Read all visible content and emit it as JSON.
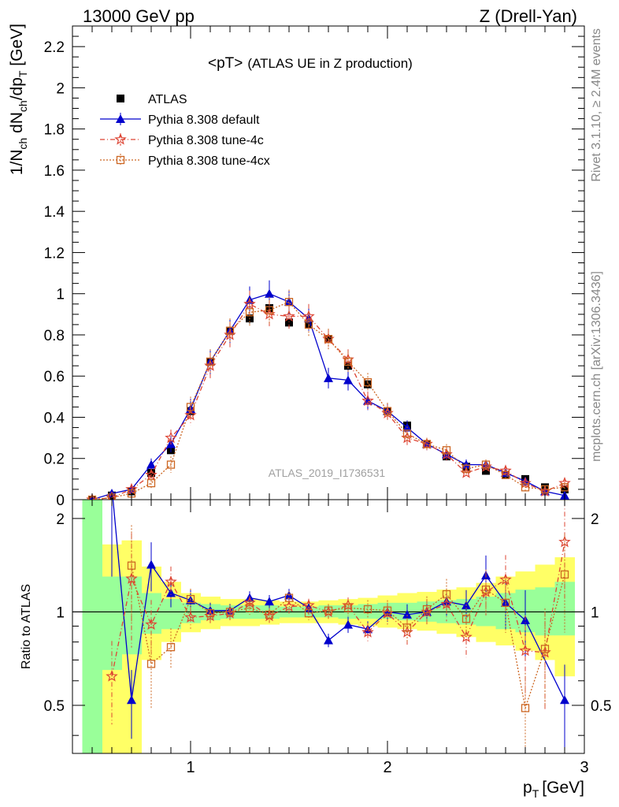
{
  "header": {
    "left": "13000 GeV pp",
    "right": "Z (Drell-Yan)"
  },
  "side": {
    "rivet": "Rivet 3.1.10, ≥ 2.4M events",
    "mcplots": "mcplots.cern.ch [arXiv:1306.3436]"
  },
  "chart_data": {
    "type": "line",
    "title": "<pT>",
    "subtitle": "(ATLAS UE in Z production)",
    "analysis_label": "ATLAS_2019_I1736531",
    "xlabel_main": "p",
    "xlabel_sub": "T",
    "xlabel_unit": "[GeV]",
    "ylabel_main": "1/N",
    "ylabel_sub1": "ch",
    "ylabel_mid1": " dN",
    "ylabel_sub2": "ch",
    "ylabel_mid2": "/dp",
    "ylabel_sub3": "T",
    "ylabel_unit": " [GeV]",
    "ratio_ylabel": "Ratio to ATLAS",
    "xlim": [
      0.4,
      3.0
    ],
    "ylim": [
      0,
      2.3
    ],
    "ratio_ylim": [
      0.35,
      2.3
    ],
    "x_ticks": [
      "1",
      "2",
      "3"
    ],
    "y_ticks": [
      "0",
      "0.2",
      "0.4",
      "0.6",
      "0.8",
      "1",
      "1.2",
      "1.4",
      "1.6",
      "1.8",
      "2",
      "2.2"
    ],
    "ratio_ticks": [
      "0.5",
      "1",
      "2"
    ],
    "legend_position": "top-left",
    "x": [
      0.5,
      0.6,
      0.7,
      0.8,
      0.9,
      1.0,
      1.1,
      1.2,
      1.3,
      1.4,
      1.5,
      1.6,
      1.7,
      1.8,
      1.9,
      2.0,
      2.1,
      2.2,
      2.3,
      2.4,
      2.5,
      2.6,
      2.7,
      2.8,
      2.9
    ],
    "band_edges": [
      0.45,
      0.55,
      0.65,
      0.75,
      0.85,
      0.95,
      1.05,
      1.15,
      1.25,
      1.35,
      1.45,
      1.55,
      1.65,
      1.75,
      1.85,
      1.95,
      2.05,
      2.15,
      2.25,
      2.35,
      2.45,
      2.55,
      2.65,
      2.75,
      2.85,
      2.95
    ],
    "band_green": [
      [
        0.35,
        2.3
      ],
      [
        0.65,
        1.3
      ],
      [
        0.73,
        1.3
      ],
      [
        0.85,
        1.15
      ],
      [
        0.88,
        1.1
      ],
      [
        0.92,
        1.07
      ],
      [
        0.94,
        1.06
      ],
      [
        0.95,
        1.05
      ],
      [
        0.95,
        1.05
      ],
      [
        0.95,
        1.05
      ],
      [
        0.96,
        1.04
      ],
      [
        0.96,
        1.04
      ],
      [
        0.96,
        1.05
      ],
      [
        0.95,
        1.05
      ],
      [
        0.95,
        1.06
      ],
      [
        0.95,
        1.07
      ],
      [
        0.94,
        1.07
      ],
      [
        0.93,
        1.08
      ],
      [
        0.92,
        1.09
      ],
      [
        0.91,
        1.1
      ],
      [
        0.9,
        1.12
      ],
      [
        0.88,
        1.15
      ],
      [
        0.86,
        1.18
      ],
      [
        0.84,
        1.2
      ],
      [
        0.84,
        1.25
      ]
    ],
    "band_yellow": [
      [
        0.35,
        2.3
      ],
      [
        0.35,
        1.65
      ],
      [
        0.35,
        1.7
      ],
      [
        0.7,
        1.4
      ],
      [
        0.8,
        1.25
      ],
      [
        0.86,
        1.15
      ],
      [
        0.88,
        1.12
      ],
      [
        0.9,
        1.1
      ],
      [
        0.9,
        1.1
      ],
      [
        0.91,
        1.09
      ],
      [
        0.92,
        1.08
      ],
      [
        0.92,
        1.08
      ],
      [
        0.92,
        1.09
      ],
      [
        0.91,
        1.1
      ],
      [
        0.9,
        1.11
      ],
      [
        0.89,
        1.13
      ],
      [
        0.88,
        1.15
      ],
      [
        0.87,
        1.16
      ],
      [
        0.85,
        1.18
      ],
      [
        0.83,
        1.2
      ],
      [
        0.8,
        1.24
      ],
      [
        0.78,
        1.3
      ],
      [
        0.75,
        1.35
      ],
      [
        0.7,
        1.42
      ],
      [
        0.62,
        1.5
      ]
    ],
    "series": [
      {
        "name": "ATLAS",
        "color": "#000000",
        "marker": "square",
        "values": [
          0.0,
          0.02,
          0.04,
          0.13,
          0.24,
          0.43,
          0.67,
          0.82,
          0.88,
          0.93,
          0.86,
          0.85,
          0.78,
          0.65,
          0.56,
          0.43,
          0.36,
          0.27,
          0.21,
          0.16,
          0.14,
          0.12,
          0.1,
          0.06,
          0.05
        ],
        "errors": [
          0.003,
          0.005,
          0.01,
          0.012,
          0.015,
          0.02,
          0.025,
          0.025,
          0.025,
          0.025,
          0.025,
          0.025,
          0.02,
          0.02,
          0.02,
          0.015,
          0.015,
          0.01,
          0.01,
          0.01,
          0.008,
          0.008,
          0.007,
          0.006,
          0.006
        ]
      },
      {
        "name": "Pythia 8.308 default",
        "color": "#0000cc",
        "marker": "triangle",
        "dash": "",
        "values": [
          0.0,
          0.03,
          0.05,
          0.17,
          0.27,
          0.44,
          0.67,
          0.82,
          0.97,
          1.0,
          0.96,
          0.88,
          0.59,
          0.58,
          0.48,
          0.43,
          0.35,
          0.27,
          0.22,
          0.17,
          0.17,
          0.13,
          0.09,
          0.04,
          0.02
        ],
        "errors": [
          0.005,
          0.01,
          0.015,
          0.03,
          0.04,
          0.05,
          0.06,
          0.06,
          0.065,
          0.065,
          0.06,
          0.06,
          0.05,
          0.05,
          0.045,
          0.04,
          0.035,
          0.03,
          0.03,
          0.025,
          0.025,
          0.02,
          0.02,
          0.015,
          0.015
        ],
        "ratio": [
          null,
          2.6,
          0.52,
          1.42,
          1.15,
          1.09,
          1.01,
          1.01,
          1.11,
          1.08,
          1.13,
          1.03,
          0.81,
          0.91,
          0.88,
          1.0,
          0.98,
          1.0,
          1.08,
          1.05,
          1.31,
          1.07,
          0.94,
          null,
          0.52
        ],
        "ratio_err": [
          null,
          0.5,
          0.25,
          0.18,
          0.1,
          0.08,
          0.06,
          0.05,
          0.05,
          0.05,
          0.05,
          0.05,
          0.05,
          0.06,
          0.06,
          0.07,
          0.08,
          0.08,
          0.1,
          0.12,
          0.16,
          0.18,
          0.25,
          null,
          0.3
        ]
      },
      {
        "name": "Pythia 8.308 tune-4c",
        "color": "#dd4433",
        "marker": "star",
        "dash": "6,3,1,3",
        "values": [
          0.0,
          0.01,
          0.05,
          0.12,
          0.3,
          0.41,
          0.65,
          0.8,
          0.95,
          0.9,
          0.89,
          0.89,
          0.78,
          0.68,
          0.48,
          0.42,
          0.3,
          0.27,
          0.22,
          0.13,
          0.16,
          0.14,
          0.08,
          0.04,
          0.08
        ],
        "errors": [
          0.005,
          0.01,
          0.015,
          0.03,
          0.04,
          0.05,
          0.06,
          0.06,
          0.065,
          0.065,
          0.06,
          0.06,
          0.05,
          0.05,
          0.045,
          0.04,
          0.035,
          0.03,
          0.03,
          0.025,
          0.025,
          0.02,
          0.02,
          0.015,
          0.015
        ],
        "ratio": [
          null,
          0.62,
          1.28,
          0.91,
          1.25,
          0.96,
          0.97,
          0.99,
          1.07,
          0.97,
          1.04,
          1.05,
          1.0,
          1.05,
          0.86,
          0.99,
          0.86,
          1.0,
          1.06,
          0.83,
          1.16,
          1.27,
          0.75,
          0.74,
          1.68
        ],
        "ratio_err": [
          null,
          0.3,
          0.4,
          0.2,
          0.12,
          0.08,
          0.06,
          0.05,
          0.05,
          0.05,
          0.05,
          0.05,
          0.05,
          0.06,
          0.07,
          0.08,
          0.1,
          0.1,
          0.12,
          0.14,
          0.16,
          0.2,
          0.3,
          0.35,
          0.35
        ]
      },
      {
        "name": "Pythia 8.308 tune-4cx",
        "color": "#cc6622",
        "marker": "open-square",
        "dash": "2,2",
        "values": [
          0.0,
          0.01,
          0.03,
          0.08,
          0.17,
          0.45,
          0.67,
          0.82,
          0.91,
          0.92,
          0.96,
          0.85,
          0.78,
          0.67,
          0.57,
          0.43,
          0.32,
          0.27,
          0.24,
          0.15,
          0.17,
          0.12,
          0.06,
          0.05,
          0.06
        ],
        "errors": [
          0.005,
          0.01,
          0.015,
          0.03,
          0.04,
          0.05,
          0.06,
          0.06,
          0.065,
          0.065,
          0.06,
          0.06,
          0.05,
          0.05,
          0.045,
          0.04,
          0.035,
          0.03,
          0.03,
          0.025,
          0.025,
          0.02,
          0.02,
          0.015,
          0.015
        ],
        "ratio": [
          null,
          null,
          1.41,
          0.68,
          0.77,
          1.1,
          0.99,
          1.0,
          1.03,
          0.98,
          1.11,
          0.99,
          1.01,
          1.03,
          1.02,
          1.01,
          0.89,
          1.02,
          1.14,
          0.95,
          1.18,
          1.07,
          0.49,
          0.76,
          1.32
        ],
        "ratio_err": [
          null,
          null,
          0.35,
          0.28,
          0.15,
          0.08,
          0.06,
          0.05,
          0.05,
          0.05,
          0.05,
          0.05,
          0.05,
          0.06,
          0.07,
          0.08,
          0.1,
          0.1,
          0.12,
          0.14,
          0.16,
          0.2,
          0.3,
          0.35,
          0.35
        ]
      }
    ]
  }
}
